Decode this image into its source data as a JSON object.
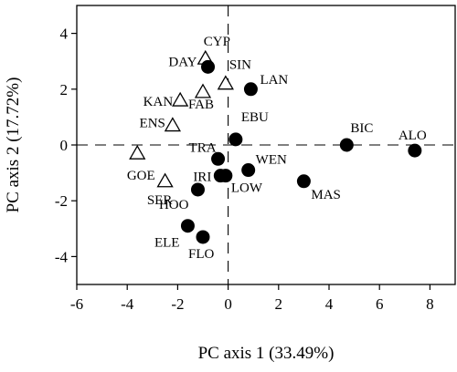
{
  "chart_data": {
    "type": "scatter",
    "xlabel": "PC axis 1 (33.49%)",
    "ylabel": "PC axis 2 (17.72%)",
    "xlim": [
      -6,
      9
    ],
    "ylim": [
      -5,
      5
    ],
    "xticks": [
      -6,
      -4,
      -2,
      0,
      2,
      4,
      6,
      8
    ],
    "yticks": [
      -4,
      -2,
      0,
      2,
      4
    ],
    "zero_lines": "dashed",
    "grid": false,
    "series": [
      {
        "marker": "open-triangle",
        "color": "#000000",
        "points": [
          {
            "label": "CYP",
            "x": -0.9,
            "y": 3.1
          },
          {
            "label": "SIN",
            "x": -0.1,
            "y": 2.2
          },
          {
            "label": "FAB",
            "x": -1.0,
            "y": 1.9
          },
          {
            "label": "KAN",
            "x": -1.9,
            "y": 1.6
          },
          {
            "label": "ENS",
            "x": -2.2,
            "y": 0.7
          },
          {
            "label": "GOE",
            "x": -3.6,
            "y": -0.3
          },
          {
            "label": "SER",
            "x": -2.5,
            "y": -1.3
          }
        ]
      },
      {
        "marker": "filled-circle",
        "color": "#000000",
        "points": [
          {
            "label": "DAY",
            "x": -0.8,
            "y": 2.8
          },
          {
            "label": "LAN",
            "x": 0.9,
            "y": 2.0
          },
          {
            "label": "EBU",
            "x": 0.3,
            "y": 0.2
          },
          {
            "label": "BIC",
            "x": 4.7,
            "y": 0.0
          },
          {
            "label": "ALO",
            "x": 7.4,
            "y": -0.2
          },
          {
            "label": "TRA",
            "x": -0.4,
            "y": -0.5
          },
          {
            "label": "IRI",
            "x": -0.3,
            "y": -1.1
          },
          {
            "label": "LOW",
            "x": -0.1,
            "y": -1.1
          },
          {
            "label": "WEN",
            "x": 0.8,
            "y": -0.9
          },
          {
            "label": "MAS",
            "x": 3.0,
            "y": -1.3
          },
          {
            "label": "HOO",
            "x": -1.2,
            "y": -1.6
          },
          {
            "label": "ELE",
            "x": -1.6,
            "y": -2.9
          },
          {
            "label": "FLO",
            "x": -1.0,
            "y": -3.3
          }
        ]
      }
    ]
  }
}
